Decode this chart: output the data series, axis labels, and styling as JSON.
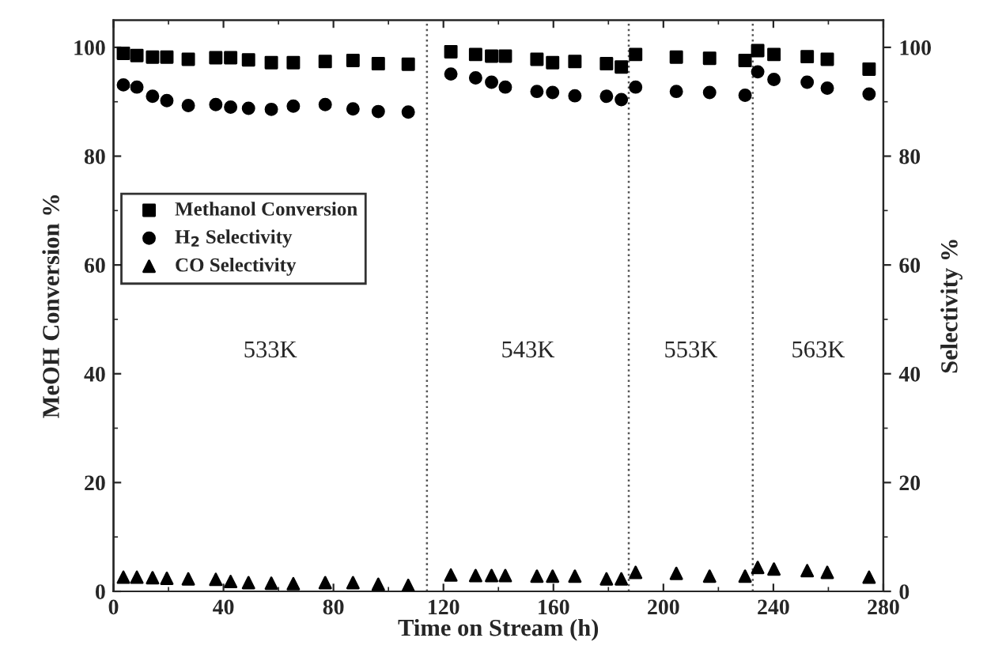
{
  "chart_data": {
    "type": "scatter",
    "xlabel": "Time on Stream (h)",
    "ylabel": "MeOH Conversion %",
    "y2label": "Selectivity %",
    "xlim": [
      0,
      280
    ],
    "xticks": [
      0,
      40,
      80,
      120,
      160,
      200,
      240,
      280
    ],
    "ylim": [
      0,
      105
    ],
    "yticks": [
      0,
      20,
      40,
      60,
      80,
      100
    ],
    "y2lim": [
      0,
      105
    ],
    "y2ticks": [
      0,
      20,
      40,
      60,
      80,
      100
    ],
    "x": [
      3.6,
      8.5,
      14.2,
      19.4,
      27.2,
      37.2,
      42.6,
      49.1,
      57.4,
      65.4,
      77,
      87.1,
      96.3,
      107.2,
      122.7,
      131.7,
      137.5,
      142.5,
      154,
      159.7,
      167.8,
      179.3,
      184.7,
      189.9,
      204.7,
      216.8,
      229.7,
      234.3,
      240.2,
      252.3,
      259.6,
      274.8
    ],
    "series": [
      {
        "name": "Methanol Conversion",
        "color": "#000000",
        "marker": "square",
        "values": [
          98.9,
          98.5,
          98.2,
          98.2,
          97.8,
          98.1,
          98.1,
          97.7,
          97.2,
          97.2,
          97.4,
          97.6,
          97.0,
          96.9,
          99.2,
          98.7,
          98.4,
          98.4,
          97.8,
          97.2,
          97.4,
          97.0,
          96.4,
          98.7,
          98.2,
          98.0,
          97.6,
          99.4,
          98.7,
          98.3,
          97.8,
          96.0
        ]
      },
      {
        "name": "H$_{2}$ Selectivity",
        "color": "#000000",
        "marker": "circle",
        "axis": "y2",
        "values": [
          93.1,
          92.7,
          91.0,
          90.2,
          89.3,
          89.5,
          89.0,
          88.8,
          88.6,
          89.2,
          89.5,
          88.7,
          88.2,
          88.1,
          95.1,
          94.4,
          93.6,
          92.7,
          91.9,
          91.7,
          91.1,
          91.0,
          90.4,
          92.7,
          91.9,
          91.7,
          91.2,
          95.5,
          94.1,
          93.6,
          92.5,
          91.4
        ]
      },
      {
        "name": "CO Selectivity",
        "color": "#000000",
        "marker": "triangle",
        "axis": "y2",
        "values": [
          2.6,
          2.6,
          2.5,
          2.4,
          2.3,
          2.2,
          1.8,
          1.6,
          1.5,
          1.4,
          1.6,
          1.6,
          1.3,
          1.1,
          3.0,
          2.9,
          2.9,
          2.9,
          2.8,
          2.8,
          2.8,
          2.3,
          2.3,
          3.5,
          3.3,
          2.8,
          2.8,
          4.4,
          4.1,
          3.8,
          3.5,
          2.6
        ]
      }
    ],
    "ref_lines": [
      {
        "axis": "x",
        "value": 114,
        "line_style": "dotted",
        "color": "#555555"
      },
      {
        "axis": "x",
        "value": 187.4,
        "line_style": "dotted",
        "color": "#555555"
      },
      {
        "axis": "x",
        "value": 232.5,
        "line_style": "dotted",
        "color": "#555555"
      }
    ],
    "annotations": [
      "533K",
      "543K",
      "553K",
      "563K"
    ],
    "legend": "top left",
    "grid": false
  }
}
